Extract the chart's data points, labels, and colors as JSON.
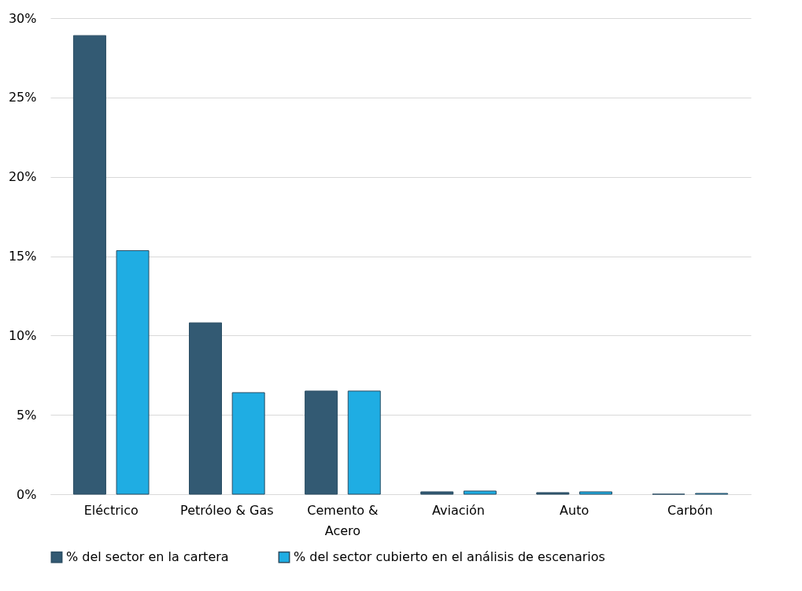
{
  "chart_data": {
    "type": "bar",
    "categories": [
      "Eléctrico",
      "Petróleo & Gas",
      "Cemento & Acero",
      "Aviación",
      "Auto",
      "Carbón"
    ],
    "series": [
      {
        "name": "% del sector en la cartera",
        "color": "#335a73",
        "values": [
          28.9,
          10.8,
          6.5,
          0.15,
          0.1,
          0
        ]
      },
      {
        "name": "% del sector cubierto en el análisis de escenarios",
        "color": "#1fade3",
        "values": [
          15.35,
          6.4,
          6.5,
          0.2,
          0.15,
          0.05
        ]
      }
    ],
    "ylim": [
      0,
      30
    ],
    "yticks": [
      {
        "value": 0,
        "label": "0%"
      },
      {
        "value": 5,
        "label": "5%"
      },
      {
        "value": 10,
        "label": "10%"
      },
      {
        "value": 15,
        "label": "15%"
      },
      {
        "value": 20,
        "label": "20%"
      },
      {
        "value": 25,
        "label": "25%"
      },
      {
        "value": 30,
        "label": "30%"
      }
    ],
    "grid": "y",
    "legend": "bottom"
  }
}
